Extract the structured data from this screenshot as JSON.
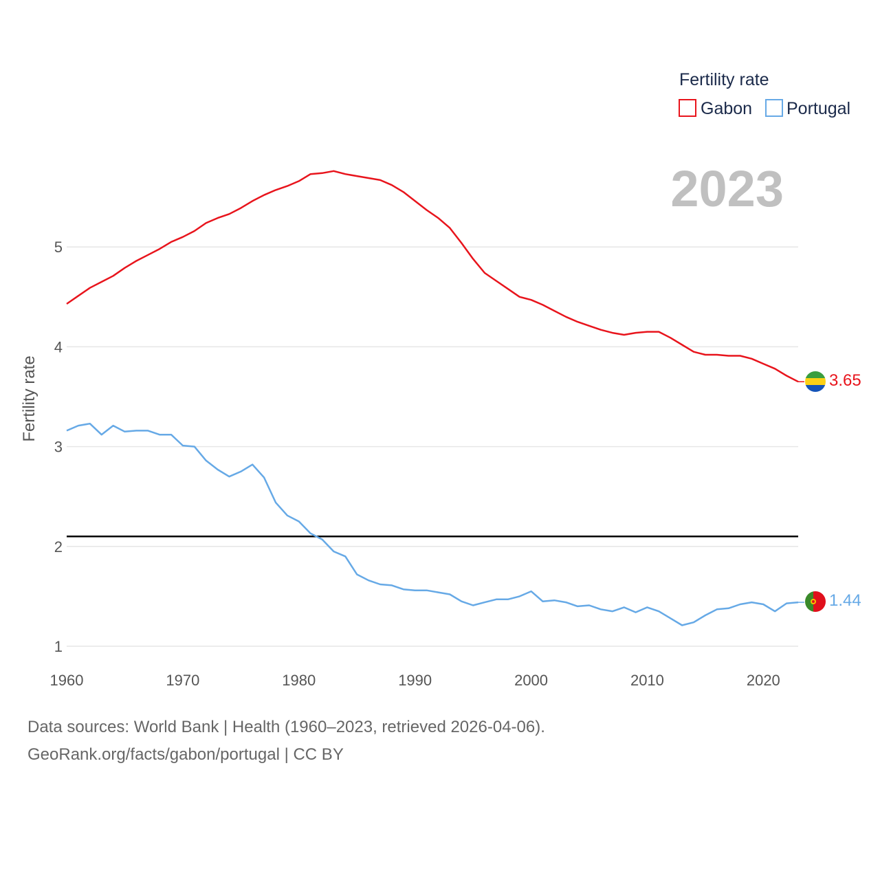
{
  "chart_data": {
    "type": "line",
    "year_label": "2023",
    "ylabel": "Fertility rate",
    "xlabel": "",
    "xlim": [
      1960,
      2023
    ],
    "ylim": [
      1,
      5.9
    ],
    "x_ticks": [
      "1960",
      "1970",
      "1980",
      "1990",
      "2000",
      "2010",
      "2020"
    ],
    "y_ticks": [
      "1",
      "2",
      "3",
      "4",
      "5"
    ],
    "grid": true,
    "legend": {
      "title": "Fertility rate",
      "position": "top-right"
    },
    "reference_line": {
      "y": 2.1
    },
    "x": [
      1960,
      1961,
      1962,
      1963,
      1964,
      1965,
      1966,
      1967,
      1968,
      1969,
      1970,
      1971,
      1972,
      1973,
      1974,
      1975,
      1976,
      1977,
      1978,
      1979,
      1980,
      1981,
      1982,
      1983,
      1984,
      1985,
      1986,
      1987,
      1988,
      1989,
      1990,
      1991,
      1992,
      1993,
      1994,
      1995,
      1996,
      1997,
      1998,
      1999,
      2000,
      2001,
      2002,
      2003,
      2004,
      2005,
      2006,
      2007,
      2008,
      2009,
      2010,
      2011,
      2012,
      2013,
      2014,
      2015,
      2016,
      2017,
      2018,
      2019,
      2020,
      2021,
      2022,
      2023
    ],
    "series": [
      {
        "name": "Gabon",
        "color": "#e8141c",
        "end_label": "3.65",
        "values": [
          4.43,
          4.51,
          4.59,
          4.65,
          4.71,
          4.79,
          4.86,
          4.92,
          4.98,
          5.05,
          5.1,
          5.16,
          5.24,
          5.29,
          5.33,
          5.39,
          5.46,
          5.52,
          5.57,
          5.61,
          5.66,
          5.73,
          5.74,
          5.76,
          5.73,
          5.71,
          5.69,
          5.67,
          5.62,
          5.55,
          5.46,
          5.37,
          5.29,
          5.19,
          5.04,
          4.88,
          4.74,
          4.66,
          4.58,
          4.5,
          4.47,
          4.42,
          4.36,
          4.3,
          4.25,
          4.21,
          4.17,
          4.14,
          4.12,
          4.14,
          4.15,
          4.15,
          4.09,
          4.02,
          3.95,
          3.92,
          3.92,
          3.91,
          3.91,
          3.88,
          3.83,
          3.78,
          3.71,
          3.65
        ]
      },
      {
        "name": "Portugal",
        "color": "#66a9e6",
        "end_label": "1.44",
        "values": [
          3.16,
          3.21,
          3.23,
          3.12,
          3.21,
          3.15,
          3.16,
          3.16,
          3.12,
          3.12,
          3.01,
          3.0,
          2.86,
          2.77,
          2.7,
          2.75,
          2.82,
          2.69,
          2.44,
          2.31,
          2.25,
          2.13,
          2.07,
          1.95,
          1.9,
          1.72,
          1.66,
          1.62,
          1.61,
          1.57,
          1.56,
          1.56,
          1.54,
          1.52,
          1.45,
          1.41,
          1.44,
          1.47,
          1.47,
          1.5,
          1.55,
          1.45,
          1.46,
          1.44,
          1.4,
          1.41,
          1.37,
          1.35,
          1.39,
          1.34,
          1.39,
          1.35,
          1.28,
          1.21,
          1.24,
          1.31,
          1.37,
          1.38,
          1.42,
          1.44,
          1.42,
          1.35,
          1.43,
          1.44
        ]
      }
    ]
  },
  "footer": {
    "line1": "Data sources: World Bank | Health (1960–2023, retrieved 2026-04-06).",
    "line2": "GeoRank.org/facts/gabon/portugal | CC BY"
  }
}
